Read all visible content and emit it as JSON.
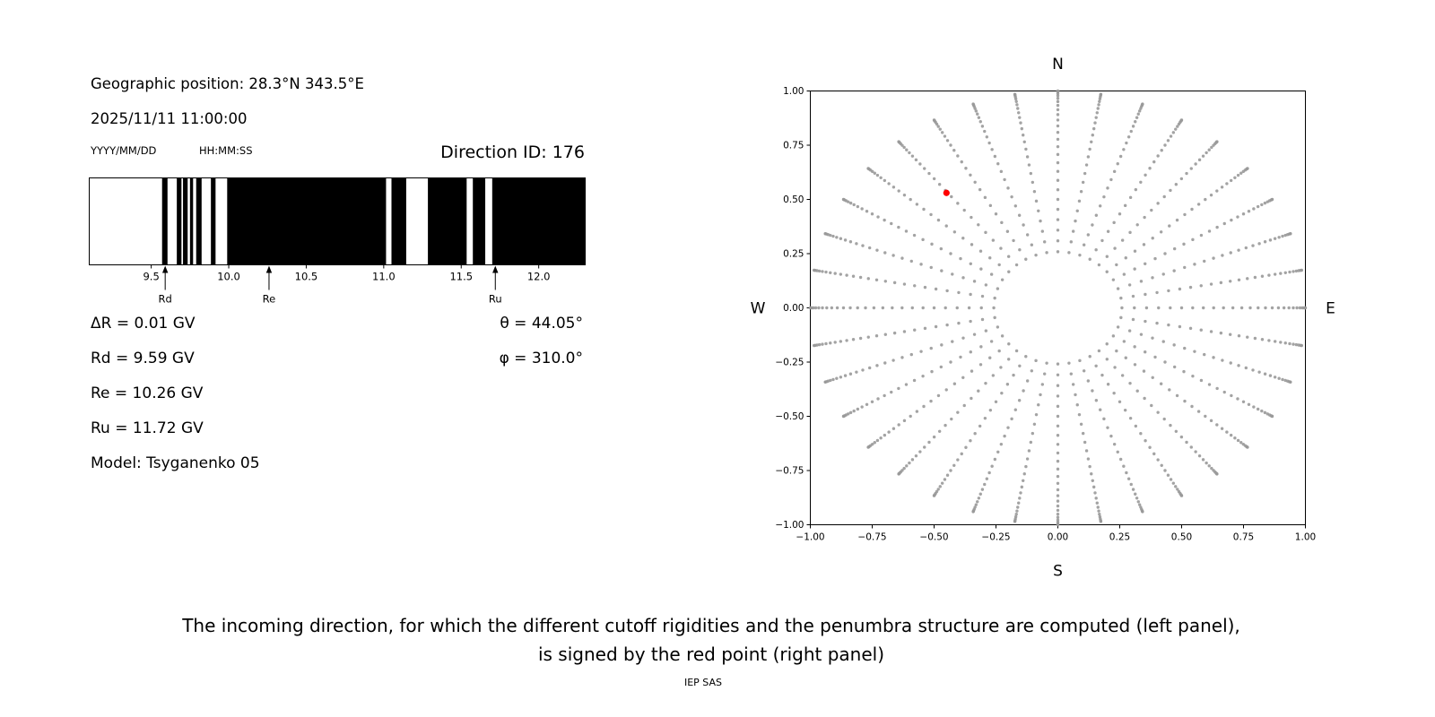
{
  "header": {
    "geo_position": "Geographic position: 28.3°N 343.5°E",
    "datetime": "2025/11/11 11:00:00",
    "date_format": "YYYY/MM/DD",
    "time_format": "HH:MM:SS",
    "direction_id": "Direction ID: 176"
  },
  "params": {
    "delta_r": "ΔR = 0.01 GV",
    "rd": "Rd = 9.59 GV",
    "re": "Re = 10.26 GV",
    "ru": "Ru = 11.72 GV",
    "model": "Model: Tsyganenko 05",
    "theta": "θ = 44.05°",
    "phi": "φ = 310.0°"
  },
  "caption": {
    "line1": "The incoming direction, for which the different cutoff rigidities and the penumbra structure are computed (left panel),",
    "line2": "is signed by the red point (right panel)",
    "credit": "IEP SAS"
  },
  "chart_data": [
    {
      "id": "penumbra",
      "type": "bar",
      "description": "Penumbra structure: black bands over rigidity axis (GV), white = gaps",
      "x_range_gv": [
        9.1,
        12.3
      ],
      "x_ticks": [
        9.5,
        10.0,
        10.5,
        11.0,
        11.5,
        12.0
      ],
      "black_bands_gv": [
        [
          9.57,
          9.605
        ],
        [
          9.665,
          9.695
        ],
        [
          9.705,
          9.735
        ],
        [
          9.75,
          9.77
        ],
        [
          9.79,
          9.825
        ],
        [
          9.885,
          9.915
        ],
        [
          9.99,
          11.015
        ],
        [
          11.05,
          11.145
        ],
        [
          11.285,
          11.535
        ],
        [
          11.575,
          11.655
        ],
        [
          11.7,
          12.3
        ]
      ],
      "markers": [
        {
          "label": "Rd",
          "value_gv": 9.59
        },
        {
          "label": "Re",
          "value_gv": 10.26
        },
        {
          "label": "Ru",
          "value_gv": 11.72
        }
      ],
      "band_color": "#000000",
      "background": "#ffffff"
    },
    {
      "id": "directions",
      "type": "scatter",
      "description": "Grid of incoming directions: azimuth spokes every 10°, radius = sin(zenith); red point = selected direction ID 176 (θ = 44.05°, φ = 310.0°)",
      "xlim": [
        -1,
        1
      ],
      "ylim": [
        -1,
        1
      ],
      "x_tick_labels": [
        "−1.00",
        "−0.75",
        "−0.50",
        "−0.25",
        "0.00",
        "0.25",
        "0.50",
        "0.75",
        "1.00"
      ],
      "y_tick_labels": [
        "−1.00",
        "−0.75",
        "−0.50",
        "−0.25",
        "0.00",
        "0.25",
        "0.50",
        "0.75",
        "1.00"
      ],
      "compass": {
        "north": "N",
        "south": "S",
        "east": "E",
        "west": "W"
      },
      "grid": {
        "azimuth_start_deg": 0,
        "azimuth_step_deg": 10,
        "azimuth_count": 36,
        "zenith_start_deg": 15,
        "zenith_step_deg": 3,
        "zenith_count": 26
      },
      "dot_color": "#999999",
      "red_point": {
        "x": -0.45,
        "y": 0.53,
        "color": "#ff0000"
      }
    }
  ]
}
